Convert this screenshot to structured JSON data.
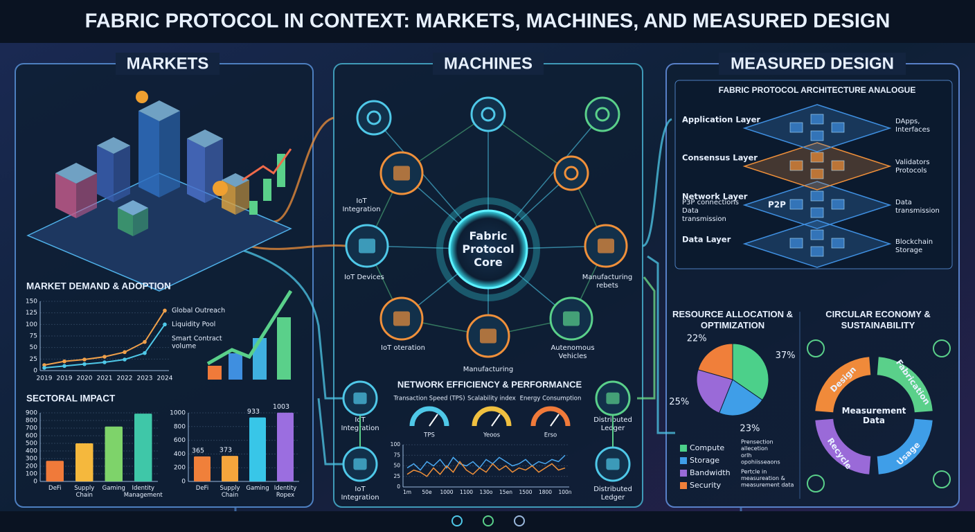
{
  "title": "FABRIC PROTOCOL IN CONTEXT: MARKETS, MACHINES, AND MEASURED DESIGN",
  "markets": {
    "heading": "MARKETS"
  },
  "machines": {
    "heading": "MACHINES",
    "core": "Fabric Protocol Core",
    "nodes": [
      "IoT Integration",
      "IoT Devices",
      "Manufacturing rebets",
      "IoT oteration",
      "Manufacturing",
      "Autenomous Vehicles",
      "IoT Integration",
      "IoT Integration",
      "Distributed Ledger",
      "Distributed Ledger"
    ],
    "performance": {
      "title": "NETWORK EFFICIENCY & PERFORMANCE",
      "gauges": [
        {
          "title": "Transaction Speed (TPS)",
          "label": "TPS"
        },
        {
          "title": "Scalability index",
          "label": "Yeoos"
        },
        {
          "title": "Energy Consumption",
          "label": "Erso"
        }
      ]
    }
  },
  "measured_design": {
    "heading": "MEASURED DESIGN",
    "architecture": {
      "title": "FABRIC PROTOCOL ARCHITECTURE ANALOGUE",
      "layers": [
        {
          "name": "Application Layer",
          "note": "DApps, Interfaces"
        },
        {
          "name": "Consensus Layer",
          "note": "Validators Protocols"
        },
        {
          "name": "Network Layer",
          "detail": "P3P connections Data transmission",
          "note": "Data transmission"
        },
        {
          "name": "Data Layer",
          "note": "Blockchain Storage"
        }
      ],
      "tag": "P2P"
    },
    "resource_notes": [
      "Prensection allecetion orlh opohiisseaons",
      "Pertcle in measureation & measurement data"
    ],
    "circular": {
      "title": "CIRCULAR ECONOMY & SUSTAINABILITY",
      "stages": [
        "Design",
        "Fabrication",
        "Usage",
        "Recycle"
      ],
      "center": "Measurement Data"
    }
  },
  "chart_data": [
    {
      "type": "line",
      "title": "MARKET DEMAND & ADOPTION",
      "categories": [
        "2019",
        "2019",
        "2020",
        "2021",
        "2022",
        "2023",
        "2024"
      ],
      "series": [
        {
          "name": "Global Outreach",
          "color": "#f0a04a",
          "values": [
            12,
            20,
            24,
            30,
            40,
            62,
            130
          ]
        },
        {
          "name": "Liquidity Pool",
          "color": "#4fc8e8",
          "values": [
            6,
            10,
            14,
            18,
            24,
            38,
            100
          ]
        }
      ],
      "annotation": "Smart Contract volume",
      "ylim": [
        0,
        150
      ],
      "yticks": [
        0,
        25,
        50,
        75,
        100,
        125,
        150
      ],
      "grid": true
    },
    {
      "type": "bar",
      "title": "SECTORAL IMPACT",
      "categories": [
        "DeFi",
        "Supply Chain",
        "Gaming",
        "Identity Management"
      ],
      "values": [
        270,
        500,
        720,
        890
      ],
      "colors": [
        "#f07a3a",
        "#f5b83d",
        "#7ed36a",
        "#3fc7a8"
      ],
      "ylim": [
        0,
        900
      ],
      "yticks": [
        0,
        100,
        200,
        300,
        400,
        500,
        600,
        700,
        800,
        900
      ],
      "grid": true
    },
    {
      "type": "bar",
      "categories": [
        "DeFi",
        "Supply Chain",
        "Gaming",
        "Identity Ropex"
      ],
      "values": [
        365,
        373,
        933,
        1003
      ],
      "colors": [
        "#f0803a",
        "#f5a53c",
        "#38c6e8",
        "#9b6ee0"
      ],
      "ylim": [
        0,
        1000
      ],
      "yticks": [
        0,
        200,
        400,
        600,
        800,
        1000
      ],
      "grid": true,
      "data_labels": true
    },
    {
      "type": "line",
      "categories": [
        "1m",
        null,
        null,
        "50e",
        null,
        null,
        "1000",
        null,
        null,
        "1100",
        null,
        null,
        "130o",
        null,
        null,
        "15en",
        null,
        null,
        "1500",
        null,
        null,
        "1800",
        null,
        null,
        "100n"
      ],
      "series": [
        {
          "color": "#4aa8f0",
          "values": [
            45,
            55,
            40,
            60,
            50,
            65,
            45,
            70,
            55,
            50,
            60,
            45,
            65,
            55,
            70,
            60,
            50,
            55,
            65,
            50,
            60,
            55,
            65,
            60,
            75
          ]
        },
        {
          "color": "#f0903a",
          "values": [
            30,
            40,
            35,
            25,
            45,
            30,
            50,
            35,
            60,
            40,
            30,
            45,
            35,
            55,
            40,
            50,
            35,
            45,
            40,
            50,
            35,
            45,
            55,
            40,
            45
          ]
        }
      ],
      "ylim": [
        0,
        100
      ],
      "yticks": [
        0,
        25,
        50,
        75,
        100
      ],
      "grid": true
    },
    {
      "type": "pie",
      "title": "RESOURCE ALLOCATION & OPTIMIZATION",
      "categories": [
        "Compute",
        "Storage",
        "Bandwidth",
        "Security"
      ],
      "values": [
        37,
        23,
        25,
        22
      ],
      "value_labels": [
        "37%",
        "23%",
        "25%",
        "22%"
      ],
      "colors": [
        "#4cd08a",
        "#3f9ee8",
        "#9a6ad8",
        "#f07f3a"
      ]
    }
  ]
}
